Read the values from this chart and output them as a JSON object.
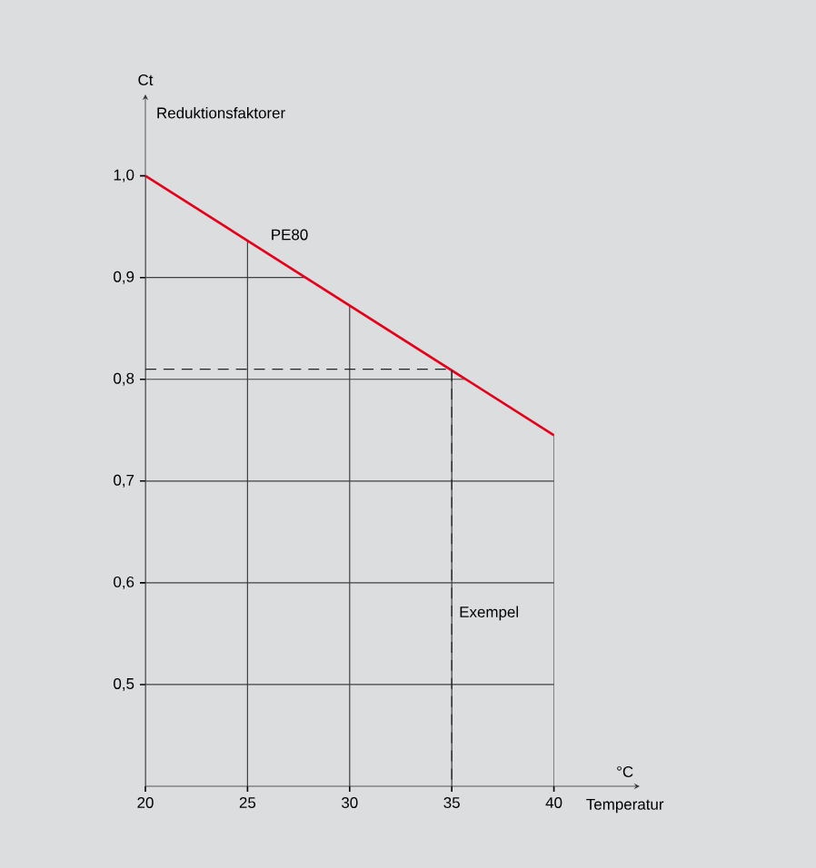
{
  "chart_data": {
    "type": "line",
    "xlabel": "°C",
    "ylabel": "Ct",
    "annotations": [
      "Temperatur",
      "Reduktionsfaktorer",
      {
        "text": "Exempel",
        "x": 35,
        "y": 0.57
      }
    ],
    "xlim": [
      20,
      44.2
    ],
    "ylim": [
      0.4,
      1.08
    ],
    "xticks": [
      20,
      25,
      30,
      35,
      40
    ],
    "yticks": [
      {
        "value": 0.5,
        "label": "0,5"
      },
      {
        "value": 0.6,
        "label": "0,6"
      },
      {
        "value": 0.7,
        "label": "0,7"
      },
      {
        "value": 0.8,
        "label": "0,8"
      },
      {
        "value": 0.9,
        "label": "0,9"
      },
      {
        "value": 1.0,
        "label": "1,0"
      }
    ],
    "grid": true,
    "series": [
      {
        "name": "PE80",
        "color": "#e3001b",
        "x": [
          20,
          40
        ],
        "values": [
          1.0,
          0.745
        ]
      },
      {
        "color": "#222222",
        "x": [
          20,
          35,
          35
        ],
        "values": [
          0.81,
          0.81,
          0.4
        ],
        "line_style": "dashed"
      }
    ]
  }
}
